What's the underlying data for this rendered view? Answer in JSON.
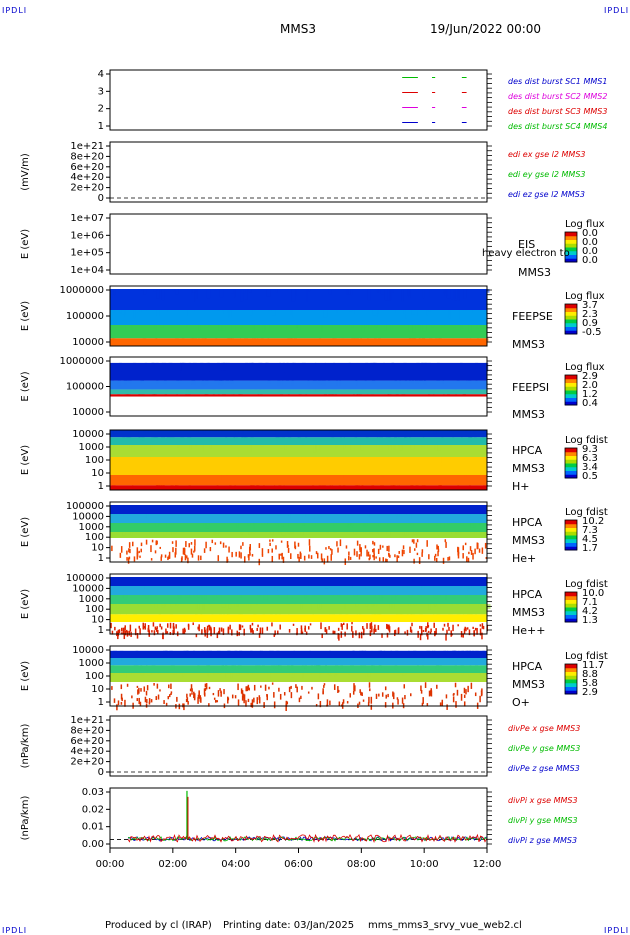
{
  "header": {
    "corner_label": "IPDLI",
    "spacecraft": "MMS3",
    "date_time": "19/Jun/2022 00:00"
  },
  "footer": {
    "produced_by": "Produced by cl (IRAP)",
    "printing_date": "Printing date: 03/Jan/2025",
    "file": "mms_mms3_srvy_vue_web2.cl"
  },
  "colors": {
    "panel_border": "#000000",
    "red": "#dd0000",
    "green": "#00bb00",
    "blue": "#0000cc",
    "magenta": "#dd00dd"
  },
  "chart_data": [
    {
      "type": "line",
      "id": "burst",
      "y_ticks": [
        "4",
        "3",
        "2",
        "1"
      ],
      "ylim": [
        0.5,
        4.5
      ],
      "legend": [
        {
          "text": "des dist burst SC1 MMS1",
          "color": "#0000cc"
        },
        {
          "text": "des dist burst SC2 MMS2",
          "color": "#dd00dd"
        },
        {
          "text": "des dist burst SC3 MMS3",
          "color": "#dd0000"
        },
        {
          "text": "des dist burst SC4 MMS4",
          "color": "#00bb00"
        }
      ],
      "segments": [
        {
          "level": 4,
          "color": "#00bb00",
          "t": [
            [
              9.3,
              9.8
            ],
            [
              10.25,
              10.35
            ],
            [
              11.2,
              11.35
            ]
          ]
        },
        {
          "level": 3,
          "color": "#dd0000",
          "t": [
            [
              9.3,
              9.8
            ],
            [
              10.25,
              10.35
            ],
            [
              11.2,
              11.35
            ]
          ]
        },
        {
          "level": 2,
          "color": "#dd00dd",
          "t": [
            [
              9.3,
              9.8
            ],
            [
              10.25,
              10.35
            ],
            [
              11.2,
              11.35
            ]
          ]
        },
        {
          "level": 1,
          "color": "#0000cc",
          "t": [
            [
              9.3,
              9.8
            ],
            [
              10.25,
              10.35
            ],
            [
              11.2,
              11.35
            ]
          ]
        }
      ]
    },
    {
      "type": "line",
      "id": "edi",
      "ylabel": "(mV/m)",
      "y_ticks": [
        "1e+21",
        "8e+20",
        "6e+20",
        "4e+20",
        "2e+20",
        "0"
      ],
      "ylim": [
        0,
        1e+21
      ],
      "legend": [
        {
          "text": "edi ex gse l2 MMS3",
          "color": "#dd0000"
        },
        {
          "text": "edi ey gse l2 MMS3",
          "color": "#00bb00"
        },
        {
          "text": "edi ez gse l2 MMS3",
          "color": "#0000cc"
        }
      ],
      "zero_line": true
    },
    {
      "type": "heatmap",
      "id": "eis",
      "ylabel": "E (eV)",
      "y_ticks": [
        "1e+07",
        "1e+06",
        "1e+05",
        "1e+04"
      ],
      "ylim": [
        10000.0,
        10000000.0
      ],
      "label_lines": [
        "EIS",
        "MMS3"
      ],
      "overlay_text": "heavy electron to",
      "colorbar": {
        "title": "Log flux",
        "ticks": [
          "0.0",
          "0.0",
          "0.0",
          "0.0"
        ],
        "scale": "rainbow"
      },
      "empty": true
    },
    {
      "type": "heatmap",
      "id": "feepse",
      "ylabel": "E (eV)",
      "y_ticks": [
        "1000000",
        "100000",
        "10000"
      ],
      "ylim": [
        10000,
        1000000
      ],
      "label_lines": [
        "FEEPSE",
        "MMS3"
      ],
      "colorbar": {
        "title": "Log flux",
        "ticks": [
          "3.7",
          "2.3",
          "0.9",
          "-0.5"
        ],
        "scale": "rainbow"
      },
      "bands": [
        {
          "from": 0.0,
          "to": 0.13,
          "color": "#ff6600"
        },
        {
          "from": 0.13,
          "to": 0.35,
          "color": "#33cc55"
        },
        {
          "from": 0.35,
          "to": 0.6,
          "color": "#0099ee"
        },
        {
          "from": 0.6,
          "to": 0.95,
          "color": "#0033dd"
        }
      ]
    },
    {
      "type": "heatmap",
      "id": "feepsi",
      "ylabel": "E (eV)",
      "y_ticks": [
        "1000000",
        "100000",
        "10000"
      ],
      "ylim": [
        10000,
        1000000
      ],
      "label_lines": [
        "FEEPSI",
        "MMS3"
      ],
      "colorbar": {
        "title": "Log flux",
        "ticks": [
          "2.9",
          "2.0",
          "1.2",
          "0.4"
        ],
        "scale": "rainbow"
      },
      "bands": [
        {
          "from": 0.33,
          "to": 0.37,
          "color": "#dd0000"
        },
        {
          "from": 0.37,
          "to": 0.45,
          "color": "#33bbaa"
        },
        {
          "from": 0.45,
          "to": 0.6,
          "color": "#2277ee"
        },
        {
          "from": 0.6,
          "to": 0.9,
          "color": "#0022cc"
        }
      ]
    },
    {
      "type": "heatmap",
      "id": "hpca_h",
      "ylabel": "E (eV)",
      "y_ticks": [
        "10000",
        "1000",
        "100",
        "10",
        "1"
      ],
      "ylim": [
        1,
        30000
      ],
      "label_lines": [
        "HPCA",
        "MMS3",
        "H+"
      ],
      "colorbar": {
        "title": "Log fdist",
        "ticks": [
          "9.3",
          "6.3",
          "3.4",
          "0.5"
        ],
        "scale": "rainbow"
      },
      "bands": [
        {
          "from": 0.0,
          "to": 0.08,
          "color": "#dd0000"
        },
        {
          "from": 0.08,
          "to": 0.25,
          "color": "#ff6600"
        },
        {
          "from": 0.25,
          "to": 0.55,
          "color": "#ffcc00"
        },
        {
          "from": 0.55,
          "to": 0.75,
          "color": "#aadd33"
        },
        {
          "from": 0.75,
          "to": 0.88,
          "color": "#22bbaa"
        },
        {
          "from": 0.88,
          "to": 1.0,
          "color": "#0033cc"
        }
      ]
    },
    {
      "type": "heatmap",
      "id": "hpca_he1",
      "ylabel": "E (eV)",
      "y_ticks": [
        "100000",
        "10000",
        "1000",
        "100",
        "10",
        "1"
      ],
      "ylim": [
        1,
        100000
      ],
      "label_lines": [
        "HPCA",
        "MMS3",
        "He+"
      ],
      "colorbar": {
        "title": "Log fdist",
        "ticks": [
          "10.2",
          "7.3",
          "4.5",
          "1.7"
        ],
        "scale": "rainbow"
      },
      "bands": [
        {
          "from": 0.4,
          "to": 0.5,
          "color": "#99dd33"
        },
        {
          "from": 0.5,
          "to": 0.65,
          "color": "#33cc66"
        },
        {
          "from": 0.65,
          "to": 0.8,
          "color": "#22aadd"
        },
        {
          "from": 0.8,
          "to": 0.95,
          "color": "#0022cc"
        }
      ],
      "specks": {
        "from": 0.05,
        "to": 0.38,
        "color": "#ee4400"
      }
    },
    {
      "type": "heatmap",
      "id": "hpca_he2",
      "ylabel": "E (eV)",
      "y_ticks": [
        "100000",
        "10000",
        "1000",
        "100",
        "10",
        "1"
      ],
      "ylim": [
        1,
        100000
      ],
      "label_lines": [
        "HPCA",
        "MMS3",
        "He++"
      ],
      "colorbar": {
        "title": "Log fdist",
        "ticks": [
          "10.0",
          "7.1",
          "4.2",
          "1.3"
        ],
        "scale": "rainbow"
      },
      "bands": [
        {
          "from": 0.2,
          "to": 0.33,
          "color": "#ffee00"
        },
        {
          "from": 0.33,
          "to": 0.5,
          "color": "#99dd33"
        },
        {
          "from": 0.5,
          "to": 0.65,
          "color": "#33cc77"
        },
        {
          "from": 0.65,
          "to": 0.8,
          "color": "#22aadd"
        },
        {
          "from": 0.8,
          "to": 0.95,
          "color": "#0022cc"
        }
      ],
      "specks": {
        "from": 0.0,
        "to": 0.2,
        "color": "#dd2200"
      }
    },
    {
      "type": "heatmap",
      "id": "hpca_o",
      "ylabel": "E (eV)",
      "y_ticks": [
        "10000",
        "1000",
        "100",
        "10",
        "1"
      ],
      "ylim": [
        1,
        30000
      ],
      "label_lines": [
        "HPCA",
        "MMS3",
        "O+"
      ],
      "colorbar": {
        "title": "Log fdist",
        "ticks": [
          "11.7",
          "8.8",
          "5.8",
          "2.9"
        ],
        "scale": "rainbow"
      },
      "bands": [
        {
          "from": 0.4,
          "to": 0.55,
          "color": "#aadd33"
        },
        {
          "from": 0.55,
          "to": 0.68,
          "color": "#33cc77"
        },
        {
          "from": 0.68,
          "to": 0.8,
          "color": "#22aadd"
        },
        {
          "from": 0.8,
          "to": 0.92,
          "color": "#0022cc"
        }
      ],
      "specks": {
        "from": 0.02,
        "to": 0.4,
        "color": "#dd3300"
      }
    },
    {
      "type": "line",
      "id": "divpe",
      "ylabel": "(nPa/km)",
      "y_ticks": [
        "1e+21",
        "8e+20",
        "6e+20",
        "4e+20",
        "2e+20",
        "0"
      ],
      "ylim": [
        0,
        1e+21
      ],
      "legend": [
        {
          "text": "divPe x gse MMS3",
          "color": "#dd0000"
        },
        {
          "text": "divPe y gse MMS3",
          "color": "#00bb00"
        },
        {
          "text": "divPe z gse MMS3",
          "color": "#0000cc"
        }
      ],
      "zero_line": true
    },
    {
      "type": "line",
      "id": "divpi",
      "ylabel": "(nPa/km)",
      "y_ticks": [
        "0.03",
        "0.02",
        "0.01",
        "0.00"
      ],
      "ylim": [
        -0.006,
        0.036
      ],
      "legend": [
        {
          "text": "divPi x gse MMS3",
          "color": "#dd0000"
        },
        {
          "text": "divPi y gse MMS3",
          "color": "#00bb00"
        },
        {
          "text": "divPi z gse MMS3",
          "color": "#0000cc"
        }
      ],
      "spike": {
        "t": 2.45,
        "value": 0.034
      },
      "noise": true
    }
  ],
  "x_axis": {
    "ticks": [
      "00:00",
      "02:00",
      "04:00",
      "06:00",
      "08:00",
      "10:00",
      "12:00"
    ],
    "range_hours": [
      0,
      12
    ]
  }
}
